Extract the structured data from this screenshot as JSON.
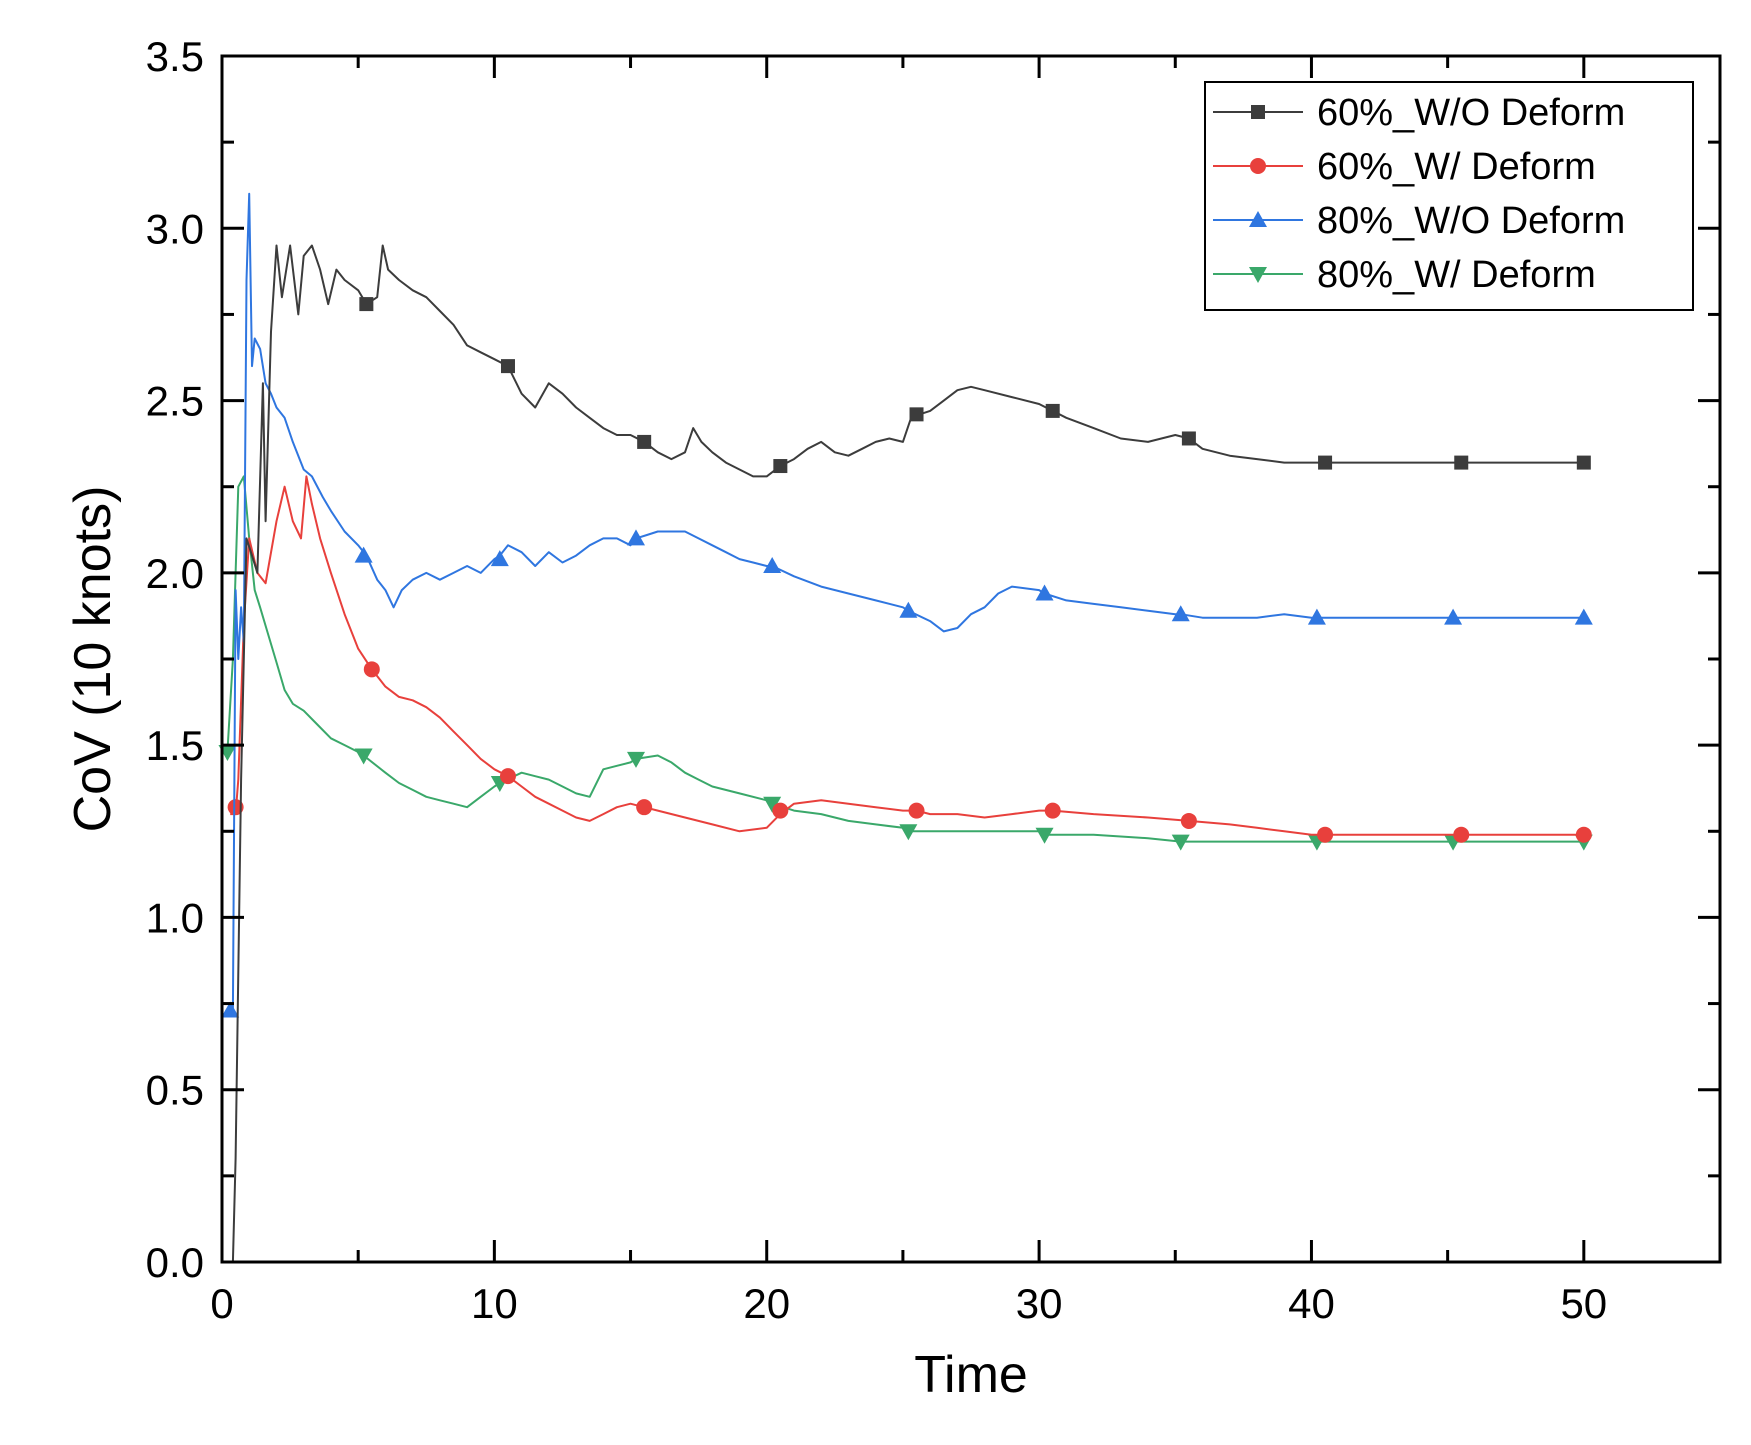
{
  "chart_data": {
    "type": "line",
    "title": "",
    "xlabel": "Time",
    "ylabel": "CoV (10 knots)",
    "xlim": [
      0,
      55
    ],
    "ylim": [
      0,
      3.5
    ],
    "xticks": [
      0,
      10,
      20,
      30,
      40,
      50
    ],
    "yticks": [
      0.0,
      0.5,
      1.0,
      1.5,
      2.0,
      2.5,
      3.0,
      3.5
    ],
    "xtick_labels": [
      "0",
      "10",
      "20",
      "30",
      "40",
      "50"
    ],
    "ytick_labels": [
      "0.0",
      "0.5",
      "1.0",
      "1.5",
      "2.0",
      "2.5",
      "3.0",
      "3.5"
    ],
    "grid": false,
    "legend_position": "top-right",
    "series": [
      {
        "name": "60%_W/O Deform",
        "color": "#3c3c3c",
        "marker": "square",
        "x": [
          0.4,
          0.5,
          0.7,
          0.9,
          1.1,
          1.3,
          1.5,
          1.6,
          1.8,
          2.0,
          2.2,
          2.5,
          2.8,
          3.0,
          3.3,
          3.6,
          3.9,
          4.2,
          4.5,
          5.0,
          5.3,
          5.7,
          5.9,
          6.1,
          6.5,
          7.0,
          7.5,
          8.0,
          8.5,
          9.0,
          9.5,
          10.0,
          10.5,
          11.0,
          11.5,
          12.0,
          12.5,
          13.0,
          13.5,
          14.0,
          14.5,
          15.0,
          15.5,
          16.0,
          16.5,
          17.0,
          17.3,
          17.6,
          18.0,
          18.5,
          19.0,
          19.5,
          20.0,
          20.5,
          21.0,
          21.5,
          22.0,
          22.5,
          23.0,
          23.5,
          24.0,
          24.5,
          25.0,
          25.3,
          25.6,
          26.0,
          26.5,
          27.0,
          27.5,
          28.0,
          29.0,
          30.0,
          30.5,
          31.0,
          32.0,
          33.0,
          34.0,
          35.0,
          35.5,
          36.0,
          37.0,
          38.0,
          39.0,
          40.0,
          40.5,
          42.0,
          44.0,
          45.5,
          48.0,
          50.0
        ],
        "y": [
          0.0,
          0.3,
          1.4,
          2.1,
          2.05,
          2.0,
          2.55,
          2.15,
          2.7,
          2.95,
          2.8,
          2.95,
          2.75,
          2.92,
          2.95,
          2.88,
          2.78,
          2.88,
          2.85,
          2.82,
          2.78,
          2.8,
          2.95,
          2.88,
          2.85,
          2.82,
          2.8,
          2.76,
          2.72,
          2.66,
          2.64,
          2.62,
          2.6,
          2.52,
          2.48,
          2.55,
          2.52,
          2.48,
          2.45,
          2.42,
          2.4,
          2.4,
          2.38,
          2.35,
          2.33,
          2.35,
          2.42,
          2.38,
          2.35,
          2.32,
          2.3,
          2.28,
          2.28,
          2.31,
          2.33,
          2.36,
          2.38,
          2.35,
          2.34,
          2.36,
          2.38,
          2.39,
          2.38,
          2.45,
          2.46,
          2.47,
          2.5,
          2.53,
          2.54,
          2.53,
          2.51,
          2.49,
          2.47,
          2.45,
          2.42,
          2.39,
          2.38,
          2.4,
          2.39,
          2.36,
          2.34,
          2.33,
          2.32,
          2.32,
          2.32,
          2.32,
          2.32,
          2.32,
          2.32,
          2.32
        ],
        "marker_x": [
          5.3,
          10.5,
          15.5,
          20.5,
          25.5,
          30.5,
          35.5,
          40.5,
          45.5,
          50.0
        ],
        "marker_y": [
          2.78,
          2.6,
          2.38,
          2.31,
          2.46,
          2.47,
          2.39,
          2.32,
          2.32,
          2.32
        ]
      },
      {
        "name": "60%_W/ Deform",
        "color": "#e8403c",
        "marker": "circle",
        "x": [
          0.3,
          0.5,
          0.6,
          0.8,
          1.0,
          1.3,
          1.6,
          2.0,
          2.3,
          2.6,
          2.9,
          3.1,
          3.3,
          3.6,
          4.0,
          4.5,
          5.0,
          5.5,
          6.0,
          6.5,
          7.0,
          7.5,
          8.0,
          8.5,
          9.0,
          9.5,
          10.0,
          10.5,
          11.0,
          11.5,
          12.0,
          12.5,
          13.0,
          13.5,
          14.0,
          14.5,
          15.0,
          15.5,
          16.0,
          17.0,
          18.0,
          19.0,
          20.0,
          20.5,
          21.0,
          22.0,
          23.0,
          24.0,
          25.0,
          25.5,
          26.0,
          27.0,
          28.0,
          29.0,
          30.0,
          30.5,
          32.0,
          34.0,
          35.5,
          37.0,
          38.0,
          39.0,
          40.0,
          40.5,
          42.0,
          44.0,
          45.5,
          48.0,
          50.0
        ],
        "y": [
          1.3,
          1.3,
          1.4,
          1.85,
          2.1,
          2.0,
          1.97,
          2.15,
          2.25,
          2.15,
          2.1,
          2.28,
          2.2,
          2.1,
          2.0,
          1.88,
          1.78,
          1.72,
          1.67,
          1.64,
          1.63,
          1.61,
          1.58,
          1.54,
          1.5,
          1.46,
          1.43,
          1.41,
          1.38,
          1.35,
          1.33,
          1.31,
          1.29,
          1.28,
          1.3,
          1.32,
          1.33,
          1.32,
          1.31,
          1.29,
          1.27,
          1.25,
          1.26,
          1.3,
          1.33,
          1.34,
          1.33,
          1.32,
          1.31,
          1.31,
          1.3,
          1.3,
          1.29,
          1.3,
          1.31,
          1.31,
          1.3,
          1.29,
          1.28,
          1.27,
          1.26,
          1.25,
          1.24,
          1.24,
          1.24,
          1.24,
          1.24,
          1.24,
          1.24
        ],
        "marker_x": [
          0.5,
          5.5,
          10.5,
          15.5,
          20.5,
          25.5,
          30.5,
          35.5,
          40.5,
          45.5,
          50.0
        ],
        "marker_y": [
          1.32,
          1.72,
          1.41,
          1.32,
          1.31,
          1.31,
          1.31,
          1.28,
          1.24,
          1.24,
          1.24
        ]
      },
      {
        "name": "80%_W/O Deform",
        "color": "#2f76e0",
        "marker": "triangle-up",
        "x": [
          0.2,
          0.4,
          0.5,
          0.6,
          0.7,
          0.8,
          0.9,
          1.0,
          1.1,
          1.2,
          1.4,
          1.6,
          1.8,
          2.0,
          2.3,
          2.6,
          3.0,
          3.3,
          3.7,
          4.0,
          4.5,
          5.0,
          5.3,
          5.7,
          6.0,
          6.3,
          6.6,
          7.0,
          7.5,
          8.0,
          8.5,
          9.0,
          9.5,
          10.0,
          10.2,
          10.5,
          11.0,
          11.5,
          12.0,
          12.5,
          13.0,
          13.5,
          14.0,
          14.5,
          15.0,
          15.2,
          15.6,
          16.0,
          16.5,
          17.0,
          17.5,
          18.0,
          18.5,
          19.0,
          19.5,
          20.0,
          20.2,
          21.0,
          22.0,
          23.0,
          24.0,
          25.0,
          25.2,
          26.0,
          26.5,
          27.0,
          27.5,
          28.0,
          28.5,
          29.0,
          30.0,
          30.2,
          31.0,
          32.0,
          33.0,
          34.0,
          35.0,
          35.2,
          36.0,
          37.0,
          38.0,
          39.0,
          40.0,
          40.2,
          42.0,
          44.0,
          45.2,
          48.0,
          50.0
        ],
        "y": [
          0.72,
          0.73,
          1.95,
          1.75,
          1.9,
          1.8,
          2.85,
          3.1,
          2.6,
          2.68,
          2.65,
          2.55,
          2.52,
          2.48,
          2.45,
          2.38,
          2.3,
          2.28,
          2.22,
          2.18,
          2.12,
          2.08,
          2.05,
          1.98,
          1.95,
          1.9,
          1.95,
          1.98,
          2.0,
          1.98,
          2.0,
          2.02,
          2.0,
          2.04,
          2.05,
          2.08,
          2.06,
          2.02,
          2.06,
          2.03,
          2.05,
          2.08,
          2.1,
          2.1,
          2.08,
          2.1,
          2.11,
          2.12,
          2.12,
          2.12,
          2.1,
          2.08,
          2.06,
          2.04,
          2.03,
          2.02,
          2.02,
          1.99,
          1.96,
          1.94,
          1.92,
          1.9,
          1.89,
          1.86,
          1.83,
          1.84,
          1.88,
          1.9,
          1.94,
          1.96,
          1.95,
          1.94,
          1.92,
          1.91,
          1.9,
          1.89,
          1.88,
          1.88,
          1.87,
          1.87,
          1.87,
          1.88,
          1.87,
          1.87,
          1.87,
          1.87,
          1.87,
          1.87,
          1.87
        ],
        "marker_x": [
          0.3,
          5.2,
          10.2,
          15.2,
          20.2,
          25.2,
          30.2,
          35.2,
          40.2,
          45.2,
          50.0
        ],
        "marker_y": [
          0.73,
          2.05,
          2.04,
          2.1,
          2.02,
          1.89,
          1.94,
          1.88,
          1.87,
          1.87,
          1.87
        ]
      },
      {
        "name": "80%_W/ Deform",
        "color": "#3aa86a",
        "marker": "triangle-down",
        "x": [
          0.2,
          0.4,
          0.6,
          0.8,
          1.0,
          1.2,
          1.4,
          1.7,
          2.0,
          2.3,
          2.6,
          3.0,
          3.5,
          4.0,
          4.5,
          5.0,
          5.2,
          6.0,
          6.5,
          7.0,
          7.5,
          8.0,
          8.5,
          9.0,
          9.5,
          10.0,
          10.2,
          11.0,
          11.5,
          12.0,
          12.5,
          13.0,
          13.5,
          14.0,
          14.5,
          15.0,
          15.2,
          16.0,
          16.5,
          17.0,
          17.5,
          18.0,
          19.0,
          20.0,
          20.2,
          21.0,
          22.0,
          23.0,
          24.0,
          25.0,
          25.2,
          26.0,
          28.0,
          30.0,
          30.2,
          32.0,
          34.0,
          35.2,
          37.0,
          39.0,
          40.2,
          42.0,
          44.0,
          45.2,
          48.0,
          50.0
        ],
        "y": [
          1.48,
          1.75,
          2.25,
          2.28,
          2.1,
          1.95,
          1.9,
          1.82,
          1.74,
          1.66,
          1.62,
          1.6,
          1.56,
          1.52,
          1.5,
          1.48,
          1.47,
          1.42,
          1.39,
          1.37,
          1.35,
          1.34,
          1.33,
          1.32,
          1.35,
          1.38,
          1.39,
          1.42,
          1.41,
          1.4,
          1.38,
          1.36,
          1.35,
          1.43,
          1.44,
          1.45,
          1.46,
          1.47,
          1.45,
          1.42,
          1.4,
          1.38,
          1.36,
          1.34,
          1.33,
          1.31,
          1.3,
          1.28,
          1.27,
          1.26,
          1.25,
          1.25,
          1.25,
          1.25,
          1.24,
          1.24,
          1.23,
          1.22,
          1.22,
          1.22,
          1.22,
          1.22,
          1.22,
          1.22,
          1.22,
          1.22
        ],
        "marker_x": [
          0.2,
          5.2,
          10.2,
          15.2,
          20.2,
          25.2,
          30.2,
          35.2,
          40.2,
          45.2,
          50.0
        ],
        "marker_y": [
          1.48,
          1.47,
          1.39,
          1.46,
          1.33,
          1.25,
          1.24,
          1.22,
          1.22,
          1.22,
          1.22
        ]
      }
    ]
  }
}
